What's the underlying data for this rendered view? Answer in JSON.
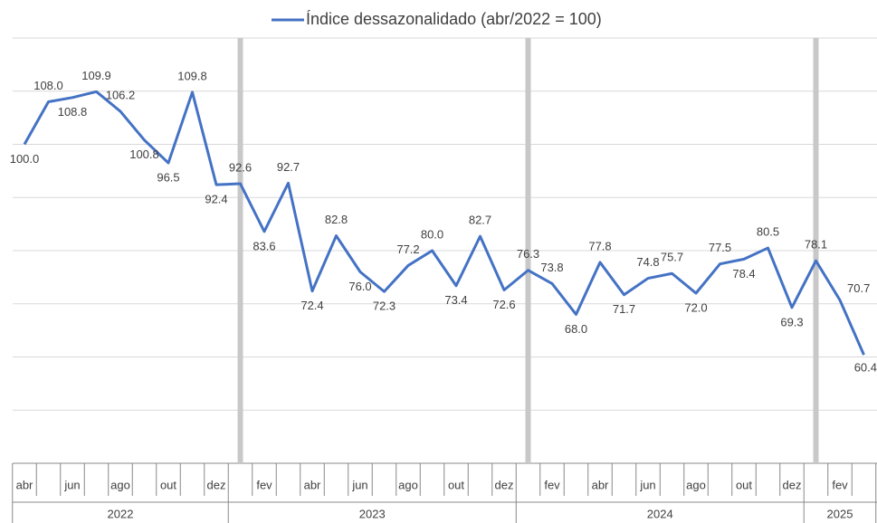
{
  "chart_data": {
    "type": "line",
    "series": [
      {
        "name": "Índice dessazonalidado (abr/2022 = 100)",
        "color": "#4472c4",
        "values": [
          100.0,
          108.0,
          108.8,
          109.9,
          106.2,
          100.8,
          96.5,
          109.8,
          92.4,
          92.6,
          83.6,
          92.7,
          72.4,
          82.8,
          76.0,
          72.3,
          77.2,
          80.0,
          73.4,
          82.7,
          72.6,
          76.3,
          73.8,
          68.0,
          77.8,
          71.7,
          74.8,
          75.7,
          72.0,
          77.5,
          78.4,
          80.5,
          69.3,
          78.1,
          70.7,
          60.4
        ],
        "value_labels": [
          "100.0",
          "108.0",
          "108.8",
          "109.9",
          "106.2",
          "100.8",
          "96.5",
          "109.8",
          "92.4",
          "92.6",
          "83.6",
          "92.7",
          "72.4",
          "82.8",
          "76.0",
          "72.3",
          "77.2",
          "80.0",
          "73.4",
          "82.7",
          "72.6",
          "76.3",
          "73.8",
          "68.0",
          "77.8",
          "71.7",
          "74.8",
          "75.7",
          "72.0",
          "77.5",
          "78.4",
          "80.5",
          "69.3",
          "78.1",
          "70.7",
          "60.4"
        ]
      }
    ],
    "categories": [
      "abr",
      null,
      "jun",
      null,
      "ago",
      null,
      "out",
      null,
      "dez",
      null,
      "fev",
      null,
      "abr",
      null,
      "jun",
      null,
      "ago",
      null,
      "out",
      null,
      "dez",
      null,
      "fev",
      null,
      "abr",
      null,
      "jun",
      null,
      "ago",
      null,
      "out",
      null,
      "dez",
      null,
      "fev",
      null
    ],
    "years": [
      "2022",
      "2023",
      "2024",
      "2025"
    ],
    "ylim": [
      40,
      120
    ],
    "yticks": [
      40,
      50,
      60,
      70,
      80,
      90,
      100,
      110,
      120
    ],
    "grid": true
  }
}
